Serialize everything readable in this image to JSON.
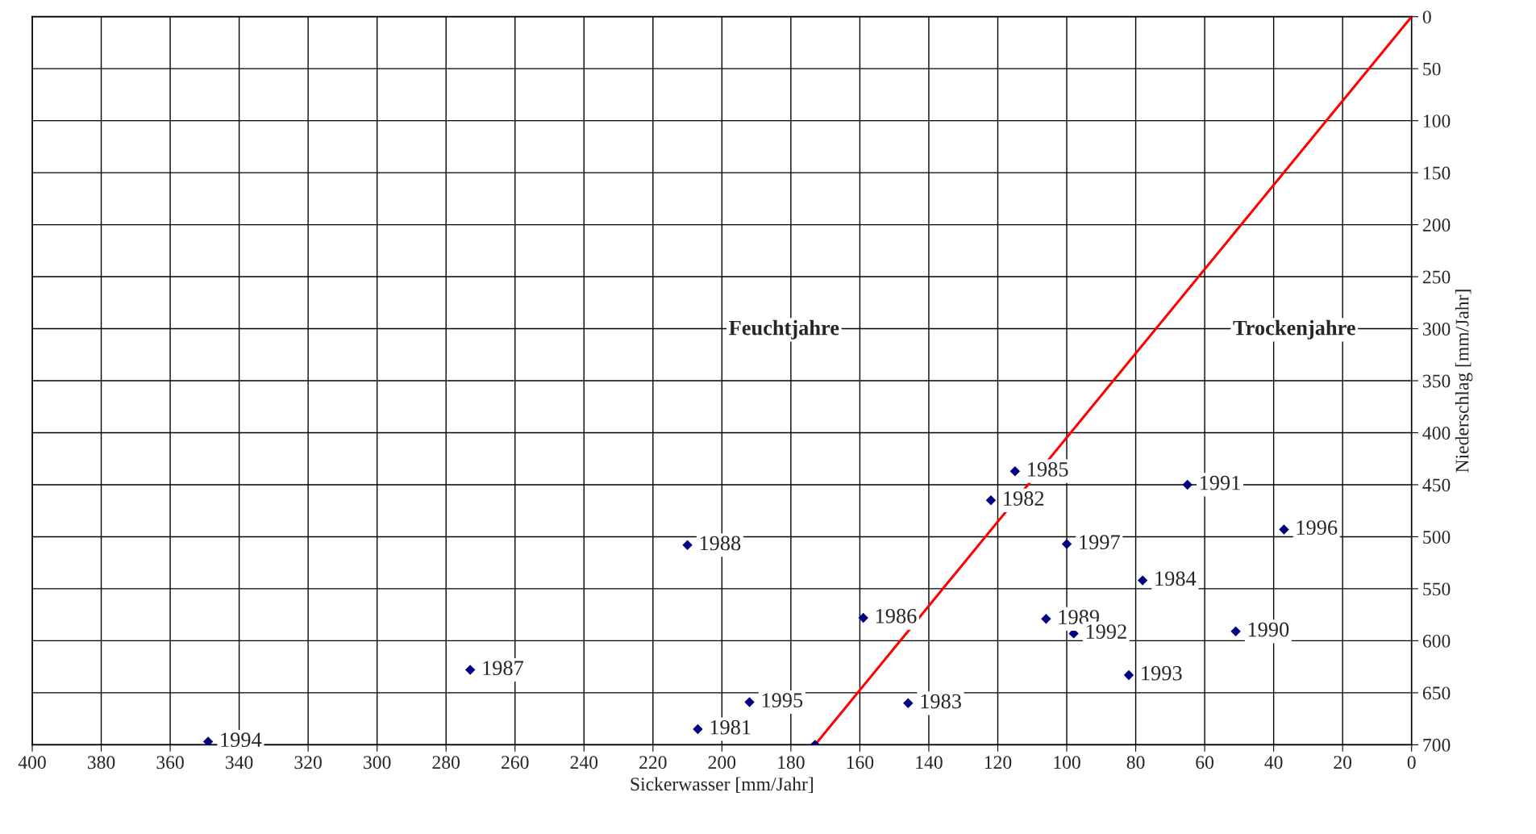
{
  "chart_data": {
    "type": "scatter",
    "xlabel": "Sickerwasser [mm/Jahr]",
    "ylabel": "Niederschlag [mm/Jahr]",
    "xlim": [
      400,
      0
    ],
    "ylim": [
      700,
      0
    ],
    "xticks": [
      400,
      380,
      360,
      340,
      320,
      300,
      280,
      260,
      240,
      220,
      200,
      180,
      160,
      140,
      120,
      100,
      80,
      60,
      40,
      20,
      0
    ],
    "yticks": [
      0,
      50,
      100,
      150,
      200,
      250,
      300,
      350,
      400,
      450,
      500,
      550,
      600,
      650,
      700
    ],
    "grid": true,
    "marker": "diamond",
    "series": [
      {
        "color": "#000080",
        "x": [
          349,
          273,
          210,
          207,
          192,
          159,
          146,
          115,
          122,
          100,
          106,
          98,
          78,
          82,
          65,
          37,
          51,
          173
        ],
        "values": [
          697,
          628,
          508,
          685,
          659,
          578,
          660,
          437,
          465,
          507,
          579,
          593,
          542,
          633,
          450,
          493,
          591,
          700
        ]
      },
      {
        "type": "line",
        "color": "#ff0000",
        "marker": "none",
        "x": [
          0,
          173
        ],
        "values": [
          0,
          700
        ]
      }
    ],
    "annotations": [
      "Feuchtjahre",
      "Trockenjahre",
      {
        "text": "1994",
        "x": 349,
        "y": 697
      },
      {
        "text": "1987",
        "x": 273,
        "y": 628
      },
      {
        "text": "1988",
        "x": 210,
        "y": 508
      },
      {
        "text": "1981",
        "x": 207,
        "y": 685
      },
      {
        "text": "1995",
        "x": 192,
        "y": 659
      },
      {
        "text": "1986",
        "x": 159,
        "y": 578
      },
      {
        "text": "1983",
        "x": 146,
        "y": 660
      },
      {
        "text": "1985",
        "x": 115,
        "y": 437
      },
      {
        "text": "1982",
        "x": 122,
        "y": 465
      },
      {
        "text": "1997",
        "x": 100,
        "y": 507
      },
      {
        "text": "1989",
        "x": 106,
        "y": 579
      },
      {
        "text": "1992",
        "x": 98,
        "y": 593
      },
      {
        "text": "1984",
        "x": 78,
        "y": 542
      },
      {
        "text": "1993",
        "x": 82,
        "y": 633
      },
      {
        "text": "1991",
        "x": 65,
        "y": 450
      },
      {
        "text": "1996",
        "x": 37,
        "y": 493
      },
      {
        "text": "1990",
        "x": 51,
        "y": 591
      }
    ]
  }
}
